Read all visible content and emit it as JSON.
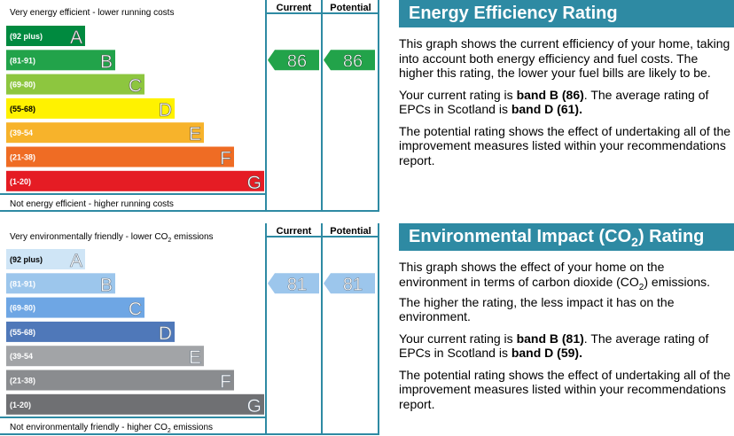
{
  "chart_data": [
    {
      "type": "bar",
      "top_label": "Very energy efficient - lower running costs",
      "bottom_label": "Not energy efficient - higher running costs",
      "current_header": "Current",
      "potential_header": "Potential",
      "bands": [
        {
          "range": "(92 plus)",
          "letter": "A",
          "color": "#008a3f",
          "text_color": "#ffffff"
        },
        {
          "range": "(81-91)",
          "letter": "B",
          "color": "#22a34a",
          "text_color": "#ffffff"
        },
        {
          "range": "(69-80)",
          "letter": "C",
          "color": "#8dc63f",
          "text_color": "#ffffff"
        },
        {
          "range": "(55-68)",
          "letter": "D",
          "color": "#fff200",
          "text_color": "#ffffff"
        },
        {
          "range": "(39-54",
          "letter": "E",
          "color": "#f7b32b",
          "text_color": "#ffffff"
        },
        {
          "range": "(21-38)",
          "letter": "F",
          "color": "#ef6c24",
          "text_color": "#ffffff"
        },
        {
          "range": "(1-20)",
          "letter": "G",
          "color": "#e51c24",
          "text_color": "#ffffff"
        }
      ],
      "current": {
        "value": "86",
        "band": "B",
        "color": "#22a34a"
      },
      "potential": {
        "value": "86",
        "band": "B",
        "color": "#22a34a"
      }
    },
    {
      "type": "bar",
      "top_label_pre": "Very environmentally friendly - lower CO",
      "top_label_sub": "2",
      "top_label_post": " emissions",
      "bottom_label_pre": "Not environmentally friendly - higher CO",
      "bottom_label_sub": "2",
      "bottom_label_post": " emissions",
      "current_header": "Current",
      "potential_header": "Potential",
      "bands": [
        {
          "range": "(92 plus)",
          "letter": "A",
          "color": "#cfe5f6",
          "text_color": "#ffffff"
        },
        {
          "range": "(81-91)",
          "letter": "B",
          "color": "#9cc6ec",
          "text_color": "#ffffff"
        },
        {
          "range": "(69-80)",
          "letter": "C",
          "color": "#6ea6e4",
          "text_color": "#ffffff"
        },
        {
          "range": "(55-68)",
          "letter": "D",
          "color": "#4f78b9",
          "text_color": "#ffffff"
        },
        {
          "range": "(39-54",
          "letter": "E",
          "color": "#a2a4a7",
          "text_color": "#ffffff"
        },
        {
          "range": "(21-38)",
          "letter": "F",
          "color": "#8a8c8f",
          "text_color": "#ffffff"
        },
        {
          "range": "(1-20)",
          "letter": "G",
          "color": "#6f7073",
          "text_color": "#ffffff"
        }
      ],
      "current": {
        "value": "81",
        "band": "B",
        "color": "#9cc6ec"
      },
      "potential": {
        "value": "81",
        "band": "B",
        "color": "#9cc6ec"
      }
    }
  ],
  "energy_panel": {
    "title": "Energy Efficiency Rating",
    "p1": "This graph shows the current efficiency of your home, taking into account both energy efficiency and fuel costs. The higher this rating, the lower your fuel bills are likely to be.",
    "p2_pre": "Your current rating is ",
    "p2_bold1": "band B (86)",
    "p2_mid": ". The average rating of EPCs in Scotland is ",
    "p2_bold2": "band D (61).",
    "p3": "The potential rating shows the effect of undertaking all of the improvement measures listed within your recommendations report."
  },
  "env_panel": {
    "title_pre": "Environmental Impact (CO",
    "title_sub": "2",
    "title_post": ") Rating",
    "p1_pre": "This graph shows the effect of your home on the environment in terms of carbon dioxide (CO",
    "p1_sub": "2",
    "p1_post": ") emissions. The higher the rating, the less impact it has on the environment.",
    "p2_pre": "Your current rating is ",
    "p2_bold1": "band B (81)",
    "p2_mid": ". The average rating of EPCs in Scotland is ",
    "p2_bold2": "band D (59).",
    "p3": "The potential rating shows the effect of undertaking all of the improvement measures listed within your recommendations report."
  }
}
